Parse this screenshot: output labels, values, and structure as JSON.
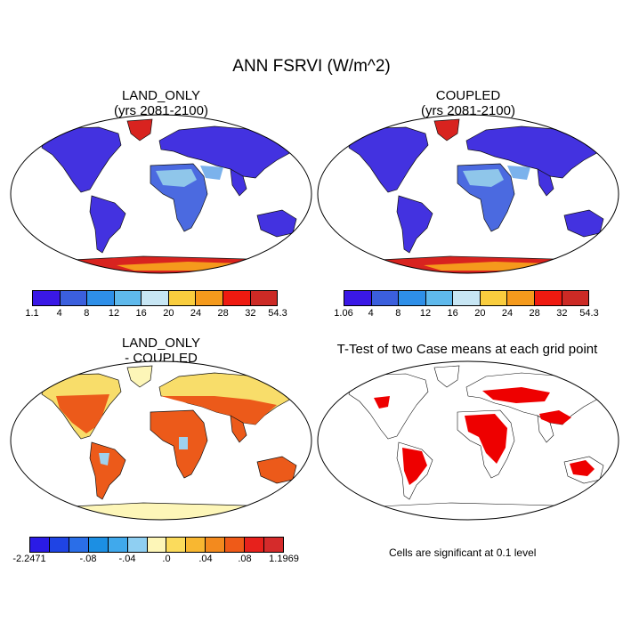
{
  "figure": {
    "title": "ANN FSRVI (W/m^2)"
  },
  "panels": {
    "land_only": {
      "title_line1": "LAND_ONLY",
      "title_line2": "(yrs 2081-2100)"
    },
    "coupled": {
      "title_line1": "COUPLED",
      "title_line2": "(yrs 2081-2100)"
    },
    "difference": {
      "title_line1": "LAND_ONLY",
      "title_line2": "- COUPLED"
    },
    "ttest": {
      "title": "T-Test of two Case means at each grid point",
      "note": "Cells are significant at 0.1 level"
    }
  },
  "colorbars": {
    "land_only": {
      "colors": [
        "#3a18e6",
        "#3b5fdd",
        "#2e8fe8",
        "#5fb9ec",
        "#c7e6f4",
        "#f9cd3e",
        "#f59a1c",
        "#ef1a10",
        "#cc2a25"
      ],
      "labels": [
        "1.1",
        "4",
        "8",
        "12",
        "16",
        "20",
        "24",
        "28",
        "32",
        "54.3"
      ]
    },
    "coupled": {
      "colors": [
        "#3a18e6",
        "#3b5fdd",
        "#2e8fe8",
        "#5fb9ec",
        "#c7e6f4",
        "#f9cd3e",
        "#f59a1c",
        "#ef1a10",
        "#cc2a25"
      ],
      "labels": [
        "1.06",
        "4",
        "8",
        "12",
        "16",
        "20",
        "24",
        "28",
        "32",
        "54.3"
      ]
    },
    "difference": {
      "colors": [
        "#2a1be6",
        "#1f44e4",
        "#2a6ee8",
        "#1c8fe3",
        "#40a9ec",
        "#8fcff2",
        "#fdf6b8",
        "#fbdb5c",
        "#f8b731",
        "#f38a1e",
        "#ef5a18",
        "#e7211c",
        "#d52b2b"
      ],
      "labels": [
        "-2.2471",
        "-.08",
        "-.04",
        ".0",
        ".04",
        ".08",
        "1.1969"
      ]
    }
  },
  "colors": {
    "land_blue": "#4332e0",
    "antarctica_red": "#d8231f",
    "diff_orange": "#ec5a1a",
    "diff_yellow": "#f8dd6a",
    "signif_red": "#ee0000"
  }
}
